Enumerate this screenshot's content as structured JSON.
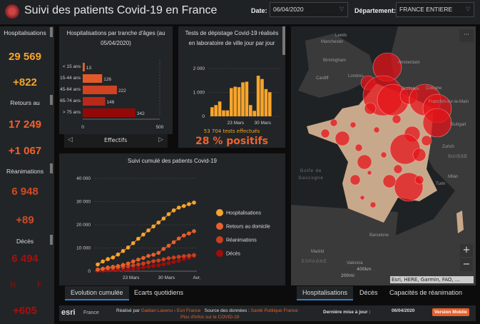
{
  "header": {
    "title": "Suivi des patients Covid-19 en France",
    "date_label": "Date:",
    "date_value": "06/04/2020",
    "dept_label": "Département:",
    "dept_value": "FRANCE ENTIERE"
  },
  "kpis": [
    {
      "label": "Hospitalisations",
      "value": "29 569",
      "delta": "+822",
      "color": "#f7a52b"
    },
    {
      "label": "Retours au",
      "value": "17 249",
      "delta": "+1 067",
      "color": "#f2622b"
    },
    {
      "label": "Réanimations",
      "value": "6 948",
      "delta": "+89",
      "color": "#d24a26"
    },
    {
      "label": "Décès",
      "value": "6 494",
      "delta": "+605",
      "color": "#a80f0f",
      "h": "H",
      "f": "F"
    }
  ],
  "colors": {
    "accent": "#2f7fd0",
    "panel": "#222528",
    "orange": "#e8602c"
  },
  "chart_data": [
    {
      "type": "bar",
      "orientation": "horizontal",
      "title": "Hospitalisations par tranche d'âges (au 05/04/2020)",
      "categories": [
        "< 15 ans",
        "15-44 ans",
        "45-64 ans",
        "65-74 ans",
        "> 75 ans"
      ],
      "values": [
        13,
        126,
        222,
        146,
        342
      ],
      "colors": [
        "#e8622c",
        "#e25a28",
        "#cf4322",
        "#b8291a",
        "#950808"
      ],
      "xlim": [
        0,
        500
      ],
      "xticks": [
        "0",
        "500"
      ],
      "xlabel": "Effectifs",
      "grid": true
    },
    {
      "type": "bar",
      "title": "Tests de dépistage Covid-19 réalisés en laboratoire de ville jour par jour",
      "x": [
        "17 Mars",
        "18 Mars",
        "19 Mars",
        "20 Mars",
        "21 Mars",
        "22 Mars",
        "23 Mars",
        "24 Mars",
        "25 Mars",
        "26 Mars",
        "27 Mars",
        "28 Mars",
        "29 Mars",
        "30 Mars",
        "31 Mars",
        "1 Avr."
      ],
      "values": [
        380,
        470,
        620,
        250,
        250,
        1180,
        1240,
        1220,
        1420,
        1450,
        470,
        230,
        1700,
        1560,
        1140,
        1010
      ],
      "ylim": [
        0,
        2000
      ],
      "yticks": [
        "0",
        "1 000",
        "2 000"
      ],
      "xticks": [
        {
          "x": "23 Mars",
          "label": "23 Mars"
        },
        {
          "x": "30 Mars",
          "label": "30 Mars"
        }
      ],
      "color": "#f7a52b",
      "summary": "53 704 tests effectués",
      "positive": "28 % positifs"
    },
    {
      "type": "line",
      "title": "Suivi cumulé des patients Covid-19",
      "x": [
        "17 Mars",
        "18 Mars",
        "19 Mars",
        "20 Mars",
        "21 Mars",
        "22 Mars",
        "23 Mars",
        "24 Mars",
        "25 Mars",
        "26 Mars",
        "27 Mars",
        "28 Mars",
        "29 Mars",
        "30 Mars",
        "31 Mars",
        "1 Avr.",
        "2 Avr.",
        "3 Avr.",
        "4 Avr.",
        "5 Avr."
      ],
      "series": [
        {
          "name": "Hospitalisations",
          "color": "#f7a52b",
          "values": [
            2900,
            4200,
            5200,
            5900,
            7200,
            8700,
            10200,
            12100,
            14000,
            15800,
            17600,
            19300,
            21000,
            22700,
            24600,
            26200,
            27400,
            28100,
            28900,
            29569
          ]
        },
        {
          "name": "Retours au domicile",
          "color": "#e8602c",
          "values": [
            700,
            1100,
            1600,
            1900,
            2200,
            2700,
            3300,
            4200,
            5000,
            5700,
            6600,
            7100,
            7900,
            9600,
            11000,
            12500,
            14100,
            15400,
            16300,
            17249
          ]
        },
        {
          "name": "Réanimations",
          "color": "#c9401f",
          "values": [
            700,
            900,
            1100,
            1300,
            1600,
            1800,
            2100,
            2500,
            2900,
            3300,
            3800,
            4300,
            4600,
            5100,
            5600,
            5900,
            6200,
            6500,
            6700,
            6948
          ]
        },
        {
          "name": "Décès",
          "color": "#a30c0c",
          "values": [
            150,
            250,
            350,
            450,
            560,
            700,
            860,
            1100,
            1300,
            1700,
            2000,
            2300,
            2600,
            3000,
            3500,
            4000,
            4500,
            5300,
            5800,
            6494
          ]
        }
      ],
      "ylim": [
        0,
        40000
      ],
      "yticks": [
        "0",
        "10 000",
        "20 000",
        "30 000",
        "40 000"
      ],
      "xticks": [
        {
          "x": "23 Mars",
          "label": "23 Mars"
        },
        {
          "x": "30 Mars",
          "label": "30 Mars"
        },
        {
          "x": "5 Avr.",
          "label": "Avr."
        }
      ],
      "legend": "right",
      "grid": true
    }
  ],
  "chart_tabs": [
    {
      "label": "Evolution cumulée",
      "active": true
    },
    {
      "label": "Ecarts quotidiens",
      "active": false
    }
  ],
  "map": {
    "labels": [
      "Leeds",
      "Manchester",
      "Birmingham",
      "Cardiff",
      "Londres",
      "Amsterdam",
      "Bruxelles",
      "Cologne",
      "Francfort-sur-le-Main",
      "Stuttgart",
      "Zurich",
      "SUISSE",
      "Milan",
      "Turin",
      "Golfe de Gascogne",
      "Madrid",
      "ESPAGNE",
      "Barcelone",
      "Valencia"
    ],
    "scale_km": "400km",
    "scale_mi": "200mi",
    "attribution": "Esri, HERE, Garmin, FAO, ...",
    "zoom_in": "+",
    "zoom_out": "−",
    "more": "···"
  },
  "map_tabs": [
    {
      "label": "Hospitalisations",
      "active": true
    },
    {
      "label": "Décès",
      "active": false
    },
    {
      "label": "Capacités de réanimation",
      "active": false
    }
  ],
  "footer": {
    "esri": "esri",
    "france": "France",
    "made_by": "Réalisé par",
    "author": "Gaëtan Lavenu",
    "sep": "-",
    "org": "Esri France",
    "source_label": "Source des données :",
    "source": "Santé Publique France",
    "more_info": "Plus d'infos sur le COVID-19",
    "update_label": "Dernière mise à jour :",
    "update_value": "06/04/2020",
    "mobile": "Version Mobile"
  }
}
